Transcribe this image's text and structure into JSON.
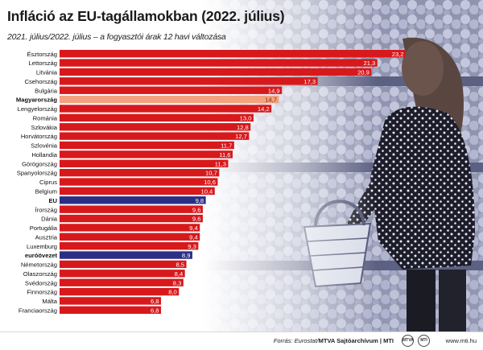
{
  "header": {
    "title": "Infláció az EU-tagállamokban (2022. július)",
    "subtitle": "2021. július/2022. július – a fogyasztói árak 12 havi változása"
  },
  "colors": {
    "bar": "#d7191c",
    "bar_highlight_hungary": "#f2a27e",
    "bar_highlight_eu": "#2a2f86",
    "label_text": "#111111",
    "value_text": "#ffffff",
    "value_text_hungary": "#7a2a10"
  },
  "chart_data": {
    "type": "bar",
    "orientation": "horizontal",
    "title": "Infláció az EU-tagállamokban (2022. július)",
    "subtitle": "2021. július/2022. július – a fogyasztói árak 12 havi változása",
    "xlim": [
      0,
      23.2
    ],
    "grid": false,
    "legend": "none",
    "categories": [
      "Észtország",
      "Lettország",
      "Litvánia",
      "Csehország",
      "Bulgária",
      "Magyarország",
      "Lengyelország",
      "Románia",
      "Szlovákia",
      "Horvátország",
      "Szlovénia",
      "Hollandia",
      "Görögország",
      "Spanyolország",
      "Ciprus",
      "Belgium",
      "EU",
      "Írország",
      "Dánia",
      "Portugália",
      "Ausztria",
      "Luxemburg",
      "euróövezet",
      "Németország",
      "Olaszország",
      "Svédország",
      "Finnország",
      "Málta",
      "Franciaország"
    ],
    "values": [
      23.2,
      21.3,
      20.9,
      17.3,
      14.9,
      14.7,
      14.2,
      13.0,
      12.8,
      12.7,
      11.7,
      11.6,
      11.3,
      10.7,
      10.6,
      10.4,
      9.8,
      9.6,
      9.6,
      9.4,
      9.4,
      9.3,
      8.9,
      8.5,
      8.4,
      8.3,
      8.0,
      6.8,
      6.8
    ],
    "value_labels": [
      "23,2",
      "21,3",
      "20,9",
      "17,3",
      "14,9",
      "14,7",
      "14,2",
      "13,0",
      "12,8",
      "12,7",
      "11,7",
      "11,6",
      "11,3",
      "10,7",
      "10,6",
      "10,4",
      "9,8",
      "9,6",
      "9,6",
      "9,4",
      "9,4",
      "9,3",
      "8,9",
      "8,5",
      "8,4",
      "8,3",
      "8,0",
      "6,8",
      "6,8"
    ],
    "highlight": {
      "Magyarország": "hungary",
      "EU": "eu",
      "euróövezet": "eu"
    },
    "bold_categories": [
      "Magyarország",
      "EU",
      "euróövezet"
    ]
  },
  "footer": {
    "source_prefix": "Forrás: Eurostat/",
    "source_credit": "MTVA Sajtóarchívum | MTI",
    "logo_mtva": "MTVA",
    "logo_mti": "MTI",
    "url": "www.mti.hu"
  }
}
